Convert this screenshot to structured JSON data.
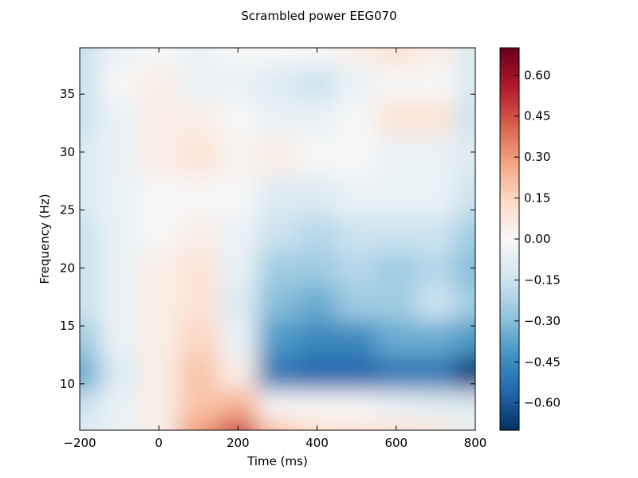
{
  "chart_data": {
    "type": "heatmap",
    "title": "Scrambled power EEG070",
    "xlabel": "Time (ms)",
    "ylabel": "Frequency (Hz)",
    "xlim": [
      -200,
      800
    ],
    "ylim": [
      6,
      39
    ],
    "xticks": [
      -200,
      0,
      200,
      400,
      600,
      800
    ],
    "xtick_labels": [
      "−200",
      "0",
      "200",
      "400",
      "600",
      "800"
    ],
    "yticks": [
      10,
      15,
      20,
      25,
      30,
      35
    ],
    "ytick_labels": [
      "10",
      "15",
      "20",
      "25",
      "30",
      "35"
    ],
    "colormap": "RdBu_r",
    "colorbar": {
      "range": [
        -0.7,
        0.7
      ],
      "ticks": [
        -0.6,
        -0.45,
        -0.3,
        -0.15,
        0.0,
        0.15,
        0.3,
        0.45,
        0.6
      ],
      "tick_labels": [
        "−0.60",
        "−0.45",
        "−0.30",
        "−0.15",
        "0.00",
        "0.15",
        "0.30",
        "0.45",
        "0.60"
      ]
    },
    "grid": false,
    "times": [
      -200,
      -100,
      0,
      100,
      200,
      300,
      400,
      500,
      600,
      700,
      800
    ],
    "frequencies": [
      6,
      8,
      11,
      14,
      17,
      20,
      23,
      26,
      30,
      33,
      36,
      39
    ],
    "values": [
      [
        -0.1,
        -0.05,
        0.05,
        0.3,
        0.45,
        0.2,
        0.12,
        0.1,
        0.1,
        0.08,
        -0.05
      ],
      [
        -0.15,
        -0.05,
        0.05,
        0.2,
        0.25,
        0.0,
        0.0,
        0.0,
        -0.05,
        -0.08,
        -0.1
      ],
      [
        -0.35,
        -0.1,
        0.05,
        0.2,
        0.05,
        -0.5,
        -0.55,
        -0.55,
        -0.5,
        -0.5,
        -0.65
      ],
      [
        -0.25,
        -0.05,
        0.05,
        0.15,
        -0.05,
        -0.4,
        -0.45,
        -0.45,
        -0.35,
        -0.35,
        -0.4
      ],
      [
        -0.15,
        -0.05,
        0.05,
        0.1,
        -0.1,
        -0.3,
        -0.35,
        -0.25,
        -0.25,
        -0.15,
        -0.25
      ],
      [
        -0.15,
        -0.05,
        0.05,
        0.1,
        -0.05,
        -0.25,
        -0.25,
        -0.2,
        -0.25,
        -0.2,
        -0.3
      ],
      [
        -0.15,
        -0.05,
        0.0,
        0.05,
        -0.05,
        -0.15,
        -0.2,
        -0.15,
        -0.15,
        -0.15,
        -0.25
      ],
      [
        -0.1,
        -0.05,
        0.0,
        0.0,
        0.0,
        -0.1,
        -0.1,
        -0.05,
        -0.05,
        -0.05,
        -0.15
      ],
      [
        -0.1,
        -0.05,
        0.05,
        0.1,
        0.02,
        0.05,
        0.0,
        0.0,
        -0.05,
        -0.05,
        -0.1
      ],
      [
        -0.15,
        -0.05,
        0.05,
        0.05,
        0.0,
        -0.05,
        -0.05,
        0.0,
        0.1,
        0.1,
        -0.15
      ],
      [
        -0.15,
        0.0,
        0.05,
        -0.05,
        -0.05,
        -0.1,
        -0.15,
        -0.05,
        0.0,
        0.0,
        -0.1
      ],
      [
        -0.15,
        -0.05,
        0.0,
        -0.05,
        0.0,
        0.0,
        0.0,
        0.05,
        0.1,
        0.05,
        -0.1
      ]
    ]
  }
}
